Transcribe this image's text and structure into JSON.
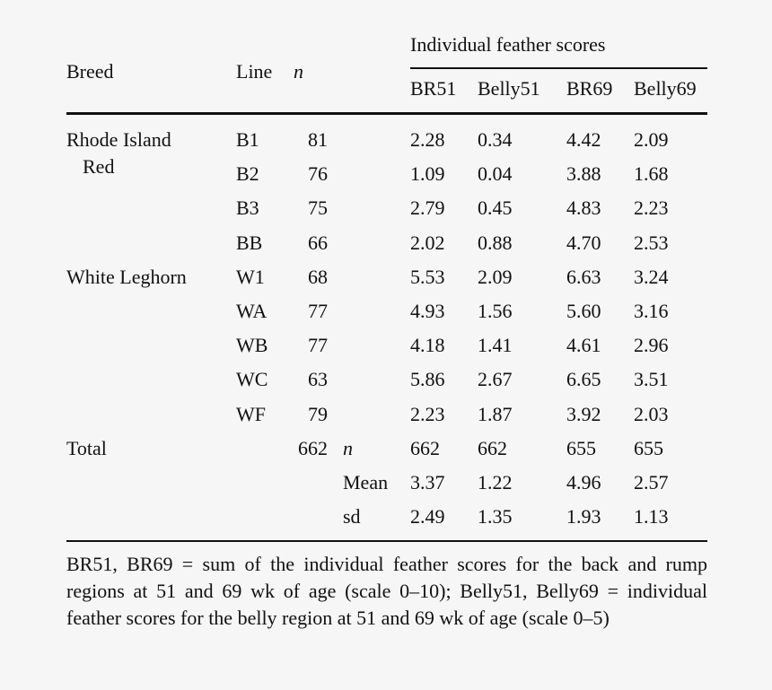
{
  "headers": {
    "breed": "Breed",
    "line": "Line",
    "n": "n",
    "group": "Individual feather scores",
    "cols": [
      "BR51",
      "Belly51",
      "BR69",
      "Belly69"
    ]
  },
  "rows": [
    {
      "breed": "Rhode Island",
      "breed2": "Red",
      "line": "B1",
      "n": "81",
      "v": [
        "2.28",
        "0.34",
        "4.42",
        "2.09"
      ]
    },
    {
      "breed": "",
      "line": "B2",
      "n": "76",
      "v": [
        "1.09",
        "0.04",
        "3.88",
        "1.68"
      ]
    },
    {
      "breed": "",
      "line": "B3",
      "n": "75",
      "v": [
        "2.79",
        "0.45",
        "4.83",
        "2.23"
      ]
    },
    {
      "breed": "",
      "line": "BB",
      "n": "66",
      "v": [
        "2.02",
        "0.88",
        "4.70",
        "2.53"
      ]
    },
    {
      "breed": "White Leghorn",
      "line": "W1",
      "n": "68",
      "v": [
        "5.53",
        "2.09",
        "6.63",
        "3.24"
      ]
    },
    {
      "breed": "",
      "line": "WA",
      "n": "77",
      "v": [
        "4.93",
        "1.56",
        "5.60",
        "3.16"
      ]
    },
    {
      "breed": "",
      "line": "WB",
      "n": "77",
      "v": [
        "4.18",
        "1.41",
        "4.61",
        "2.96"
      ]
    },
    {
      "breed": "",
      "line": "WC",
      "n": "63",
      "v": [
        "5.86",
        "2.67",
        "6.65",
        "3.51"
      ]
    },
    {
      "breed": "",
      "line": "WF",
      "n": "79",
      "v": [
        "2.23",
        "1.87",
        "3.92",
        "2.03"
      ]
    }
  ],
  "total": {
    "label": "Total",
    "n": "662",
    "stats": [
      {
        "label": "n",
        "v": [
          "662",
          "662",
          "655",
          "655"
        ]
      },
      {
        "label": "Mean",
        "v": [
          "3.37",
          "1.22",
          "4.96",
          "2.57"
        ]
      },
      {
        "label": "sd",
        "v": [
          "2.49",
          "1.35",
          "1.93",
          "1.13"
        ]
      }
    ]
  },
  "footnote": "BR51, BR69 = sum of the individual feather scores for the back and rump regions at 51 and 69 wk of age (scale 0–10); Belly51, Belly69 = individual feather scores for the belly region at 51 and 69 wk of age (scale 0–5)"
}
